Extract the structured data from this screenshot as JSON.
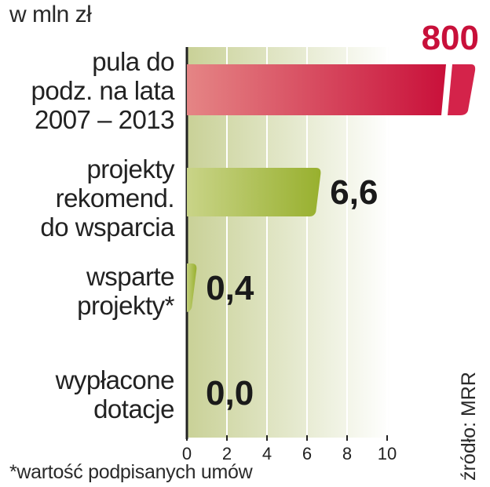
{
  "unit_label": "w mln zł",
  "footnote": "*wartość podpisanych umów",
  "source": "źródło: MRR",
  "colors": {
    "highlight": "#c8103a",
    "bar_green": "#9db63a",
    "bar_red": "#d4234a",
    "value_dark": "#1a1a1a",
    "value_highlight": "#c8103a",
    "grid_bg": "#d4dba2"
  },
  "chart_data": {
    "type": "bar",
    "orientation": "horizontal",
    "categories": [
      "pula do\npodz. na lata\n2007 – 2013",
      "projekty\nrekomend.\ndo wsparcia",
      "wsparte\nprojekty*",
      "wypłacone\ndotacje"
    ],
    "values": [
      800,
      6.6,
      0.4,
      0.0
    ],
    "value_labels": [
      "800",
      "6,6",
      "0,4",
      "0,0"
    ],
    "xlim": [
      0,
      10
    ],
    "xticks": [
      "0",
      "2",
      "4",
      "6",
      "8",
      "10"
    ],
    "broken_axis_bar_index": 0,
    "grid": true
  }
}
